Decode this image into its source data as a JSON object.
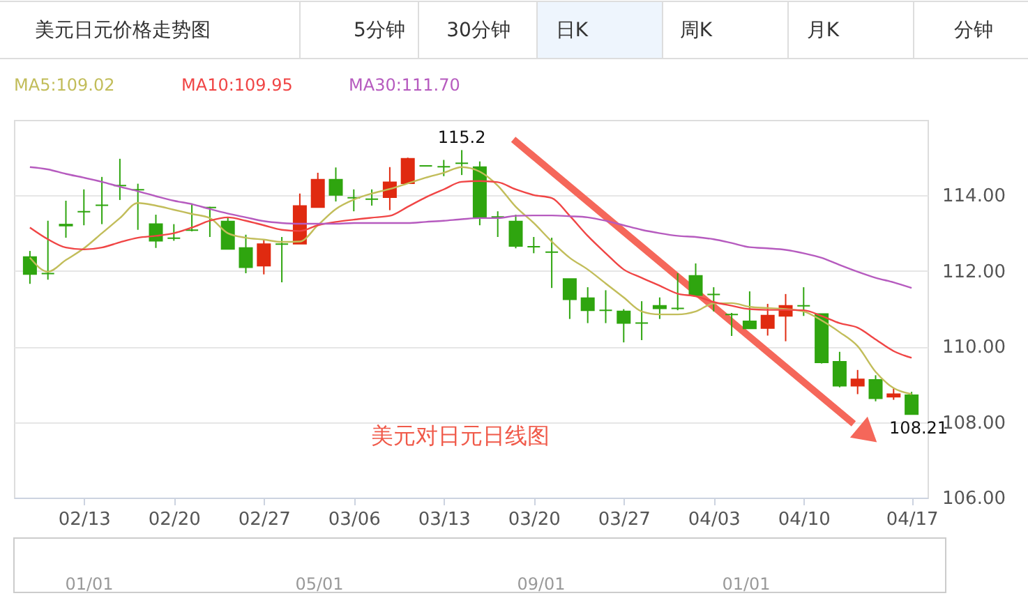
{
  "chart_data": {
    "type": "candlestick",
    "title": "美元日元价格走势图",
    "categories": [
      null,
      null,
      null,
      "02/13",
      null,
      null,
      null,
      null,
      "02/20",
      null,
      null,
      null,
      null,
      "02/27",
      null,
      null,
      null,
      null,
      "03/06",
      null,
      null,
      null,
      null,
      "03/13",
      null,
      null,
      null,
      null,
      "03/20",
      null,
      null,
      null,
      null,
      "03/27",
      null,
      null,
      null,
      null,
      "04/03",
      null,
      null,
      null,
      null,
      "04/10",
      null,
      null,
      null,
      null,
      null,
      "04/17"
    ],
    "ohlc": [
      [
        112.37,
        112.53,
        111.66,
        111.92
      ],
      [
        111.93,
        113.33,
        111.77,
        111.93
      ],
      [
        113.23,
        113.86,
        112.88,
        113.2
      ],
      [
        113.57,
        114.16,
        113.21,
        113.57
      ],
      [
        113.74,
        114.49,
        113.24,
        113.74
      ],
      [
        114.26,
        114.97,
        113.88,
        114.26
      ],
      [
        114.15,
        114.31,
        113.09,
        114.15
      ],
      [
        113.24,
        113.49,
        112.61,
        112.8
      ],
      [
        112.87,
        113.24,
        112.8,
        112.87
      ],
      [
        113.08,
        113.79,
        113.05,
        113.08
      ],
      [
        113.68,
        113.7,
        112.9,
        113.68
      ],
      [
        113.31,
        113.42,
        112.58,
        112.58
      ],
      [
        112.61,
        112.96,
        111.94,
        112.1
      ],
      [
        112.14,
        112.83,
        111.91,
        112.71
      ],
      [
        112.71,
        112.9,
        111.7,
        112.71
      ],
      [
        112.72,
        114.05,
        112.72,
        113.72
      ],
      [
        113.69,
        114.6,
        113.69,
        114.42
      ],
      [
        114.42,
        114.74,
        113.84,
        114.01
      ],
      [
        113.94,
        114.16,
        113.58,
        113.94
      ],
      [
        113.9,
        114.16,
        113.73,
        113.9
      ],
      [
        113.95,
        114.75,
        113.61,
        114.35
      ],
      [
        114.32,
        115.0,
        114.32,
        114.97
      ],
      [
        114.78,
        114.78,
        114.78,
        114.78
      ],
      [
        114.76,
        114.94,
        114.51,
        114.76
      ],
      [
        114.85,
        115.2,
        114.54,
        114.85
      ],
      [
        114.75,
        114.9,
        113.21,
        113.43
      ],
      [
        113.43,
        113.58,
        112.9,
        113.43
      ],
      [
        113.31,
        113.49,
        112.6,
        112.66
      ],
      [
        112.64,
        112.9,
        112.47,
        112.64
      ],
      [
        112.5,
        112.88,
        111.55,
        112.5
      ],
      [
        111.79,
        111.79,
        110.73,
        111.25
      ],
      [
        111.28,
        111.57,
        110.62,
        110.96
      ],
      [
        110.96,
        111.49,
        110.62,
        110.96
      ],
      [
        110.93,
        110.99,
        110.11,
        110.62
      ],
      [
        110.62,
        111.2,
        110.17,
        110.62
      ],
      [
        111.08,
        111.3,
        110.73,
        111.01
      ],
      [
        111.01,
        111.94,
        110.96,
        111.01
      ],
      [
        111.87,
        112.2,
        111.36,
        111.36
      ],
      [
        111.38,
        111.57,
        110.93,
        111.38
      ],
      [
        110.85,
        110.89,
        110.28,
        110.85
      ],
      [
        110.67,
        111.46,
        110.48,
        110.48
      ],
      [
        110.49,
        111.13,
        110.29,
        110.82
      ],
      [
        110.81,
        111.39,
        110.14,
        111.08
      ],
      [
        111.08,
        111.57,
        110.81,
        111.08
      ],
      [
        110.86,
        110.86,
        109.55,
        109.58
      ],
      [
        109.6,
        109.86,
        108.92,
        108.96
      ],
      [
        108.96,
        109.38,
        108.74,
        109.13
      ],
      [
        109.12,
        109.24,
        108.55,
        108.63
      ],
      [
        108.67,
        108.89,
        108.59,
        108.74
      ],
      [
        108.71,
        108.8,
        108.21,
        108.21
      ]
    ],
    "colors": [
      "#2fa50f",
      "#2fa50f",
      "#2fa50f",
      "#2fa50f",
      "#2fa50f",
      "#2fa50f",
      "#2fa50f",
      "#2fa50f",
      "#2fa50f",
      "#2fa50f",
      "#2fa50f",
      "#2fa50f",
      "#2fa50f",
      "#e02a10",
      "#2fa50f",
      "#e02a10",
      "#e02a10",
      "#2fa50f",
      "#2fa50f",
      "#2fa50f",
      "#e02a10",
      "#e02a10",
      "#2fa50f",
      "#2fa50f",
      "#2fa50f",
      "#2fa50f",
      "#2fa50f",
      "#2fa50f",
      "#2fa50f",
      "#2fa50f",
      "#2fa50f",
      "#2fa50f",
      "#2fa50f",
      "#2fa50f",
      "#2fa50f",
      "#2fa50f",
      "#2fa50f",
      "#2fa50f",
      "#2fa50f",
      "#2fa50f",
      "#2fa50f",
      "#e02a10",
      "#e02a10",
      "#2fa50f",
      "#2fa50f",
      "#2fa50f",
      "#e02a10",
      "#2fa50f",
      "#e02a10",
      "#2fa50f"
    ],
    "series": [
      {
        "name": "MA5:109.02",
        "type": "line",
        "color": "#c2bd5a",
        "values": [
          112.35,
          111.98,
          112.29,
          112.6,
          113.0,
          113.4,
          113.8,
          113.73,
          113.62,
          113.51,
          113.4,
          113.0,
          112.88,
          112.83,
          112.77,
          112.78,
          113.21,
          113.64,
          113.89,
          114.05,
          114.17,
          114.32,
          114.47,
          114.6,
          114.75,
          114.63,
          114.26,
          113.7,
          113.27,
          112.78,
          112.35,
          112.04,
          111.67,
          111.3,
          110.93,
          110.85,
          110.85,
          110.93,
          111.14,
          111.15,
          111.05,
          111.02,
          110.99,
          110.93,
          110.69,
          110.38,
          110.01,
          109.33,
          108.9,
          108.74
        ]
      },
      {
        "name": "MA10:109.95",
        "type": "line",
        "color": "#f04545",
        "values": [
          113.15,
          112.84,
          112.62,
          112.57,
          112.62,
          112.76,
          112.88,
          112.93,
          113.0,
          113.15,
          113.33,
          113.42,
          113.33,
          113.21,
          113.09,
          113.06,
          113.21,
          113.3,
          113.36,
          113.41,
          113.46,
          113.7,
          113.95,
          114.16,
          114.36,
          114.38,
          114.35,
          114.16,
          114.01,
          113.93,
          113.46,
          112.93,
          112.47,
          112.04,
          111.82,
          111.61,
          111.4,
          111.33,
          111.18,
          111.08,
          110.99,
          110.97,
          110.97,
          110.96,
          110.81,
          110.62,
          110.5,
          110.19,
          109.88,
          109.7
        ]
      },
      {
        "name": "MA30:111.70",
        "type": "line",
        "color": "#b65bbf",
        "values": [
          114.75,
          114.69,
          114.57,
          114.47,
          114.36,
          114.23,
          114.11,
          113.98,
          113.86,
          113.77,
          113.64,
          113.52,
          113.42,
          113.32,
          113.27,
          113.25,
          113.25,
          113.25,
          113.27,
          113.27,
          113.27,
          113.27,
          113.3,
          113.33,
          113.37,
          113.4,
          113.4,
          113.46,
          113.47,
          113.47,
          113.45,
          113.42,
          113.33,
          113.21,
          113.09,
          113.0,
          112.93,
          112.9,
          112.84,
          112.74,
          112.63,
          112.6,
          112.56,
          112.47,
          112.35,
          112.16,
          111.98,
          111.82,
          111.7,
          111.55
        ]
      }
    ],
    "ylim": [
      106,
      116
    ],
    "yticks": [
      {
        "value": 106,
        "label": "106.00"
      },
      {
        "value": 108,
        "label": "108.00"
      },
      {
        "value": 110,
        "label": "110.00"
      },
      {
        "value": 112,
        "label": "112.00"
      },
      {
        "value": 114,
        "label": "114.00"
      }
    ],
    "grid": "y",
    "legend": "top left",
    "annotations": [
      "5分钟",
      "30分钟",
      "日K",
      "周K",
      "月K",
      "分钟",
      "美元对日元日线图",
      {
        "text": "115.2",
        "y": 115.2
      },
      {
        "text": "108.21",
        "y": 108.21
      },
      "01/01",
      "05/01",
      "09/01",
      "01/01"
    ]
  }
}
